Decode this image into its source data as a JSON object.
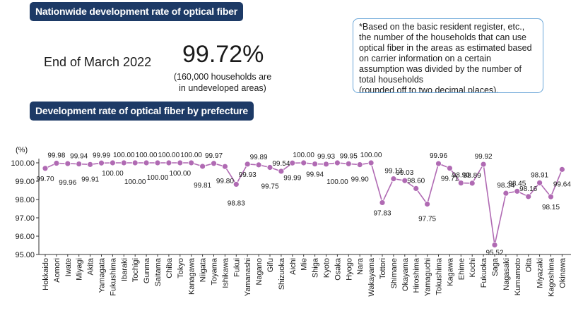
{
  "header": {
    "title": "Nationwide development rate of optical fiber",
    "as_of": "End of March 2022",
    "rate": "99.72%",
    "undeveloped_note": "(160,000 households are\nin undeveloped areas)",
    "footnote": "*Based on the basic resident register, etc., the number of the households that can use optical fiber in the areas as estimated based on carrier information on a certain assumption was divided by the number of total households\n(rounded off to two decimal places)."
  },
  "section_title": "Development rate of optical fiber by prefecture",
  "colors": {
    "banner": "#1d3a66",
    "series": "#b06ab3",
    "note_border": "#6aa6d8"
  },
  "chart_data": {
    "type": "line",
    "ylabel": "(%)",
    "ylim": [
      95.0,
      100.0
    ],
    "yticks": [
      "95.00",
      "96.00",
      "97.00",
      "98.00",
      "99.00",
      "100.00"
    ],
    "grid": false,
    "categories": [
      "Hokkaido",
      "Aomori",
      "Iwate",
      "Miyagi",
      "Akita",
      "Yamagata",
      "Fukushima",
      "Ibaraki",
      "Tochigi",
      "Gunma",
      "Saitama",
      "Chiba",
      "Tokyo",
      "Kanagawa",
      "Niigata",
      "Toyama",
      "Ishikawa",
      "Fukui",
      "Yamanashi",
      "Nagano",
      "Gifu",
      "Shizuoka",
      "Aichi",
      "Mie",
      "Shiga",
      "Kyoto",
      "Osaka",
      "Hyogo",
      "Nara",
      "Wakayama",
      "Tottori",
      "Shimane",
      "Okayama",
      "Hiroshima",
      "Yamaguchi",
      "Tokushima",
      "Kagawa",
      "Ehime",
      "Kochi",
      "Fukuoka",
      "Saga",
      "Nagasaki",
      "Kumamoto",
      "Oita",
      "Miyazaki",
      "Kagoshima",
      "Okinawa"
    ],
    "series": [
      {
        "values": [
          99.7,
          99.98,
          99.96,
          99.94,
          99.91,
          99.99,
          100.0,
          100.0,
          100.0,
          100.0,
          100.0,
          100.0,
          100.0,
          100.0,
          99.81,
          99.97,
          99.8,
          98.83,
          99.93,
          99.89,
          99.75,
          99.54,
          99.99,
          100.0,
          99.94,
          99.93,
          100.0,
          99.95,
          99.9,
          100.0,
          97.83,
          99.13,
          99.03,
          98.6,
          97.75,
          99.96,
          99.71,
          98.9,
          98.89,
          99.92,
          95.52,
          98.34,
          98.45,
          98.16,
          98.91,
          98.15,
          99.64
        ],
        "labels": [
          "99.70",
          "99.98",
          "99.96",
          "99.94",
          "99.91",
          "99.99",
          "100.00",
          "100.00",
          "100.00",
          "100.00",
          "100.00",
          "100.00",
          "100.00",
          "100.00",
          "99.81",
          "99.97",
          "99.80",
          "98.83",
          "99.93",
          "99.89",
          "99.75",
          "99.54",
          "99.99",
          "100.00",
          "99.94",
          "99.93",
          "100.00",
          "99.95",
          "99.90",
          "100.00",
          "97.83",
          "99.13",
          "99.03",
          "98.60",
          "97.75",
          "99.96",
          "99.71",
          "98.90",
          "98.89",
          "99.92",
          "95.52",
          "98.34",
          "98.45",
          "98.16",
          "98.91",
          "98.15",
          "99.64"
        ]
      }
    ]
  }
}
